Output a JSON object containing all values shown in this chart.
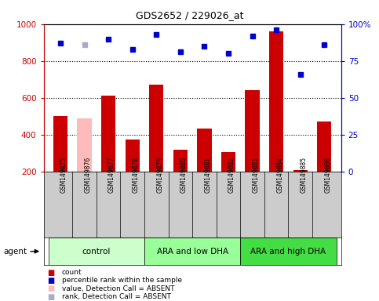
{
  "title": "GDS2652 / 229026_at",
  "samples": [
    "GSM149875",
    "GSM149876",
    "GSM149877",
    "GSM149878",
    "GSM149879",
    "GSM149880",
    "GSM149881",
    "GSM149882",
    "GSM149883",
    "GSM149884",
    "GSM149885",
    "GSM149886"
  ],
  "bar_values": [
    500,
    490,
    610,
    375,
    670,
    320,
    435,
    305,
    640,
    960,
    210,
    470
  ],
  "bar_colors": [
    "#cc0000",
    "#ffbbbb",
    "#cc0000",
    "#cc0000",
    "#cc0000",
    "#cc0000",
    "#cc0000",
    "#cc0000",
    "#cc0000",
    "#cc0000",
    "#cc0000",
    "#cc0000"
  ],
  "rank_values": [
    87,
    86,
    90,
    83,
    93,
    81,
    85,
    80,
    92,
    96,
    66,
    86
  ],
  "rank_absent": [
    false,
    true,
    false,
    false,
    false,
    false,
    false,
    false,
    false,
    false,
    false,
    false
  ],
  "ylim_left": [
    200,
    1000
  ],
  "ylim_right": [
    0,
    100
  ],
  "yticks_left": [
    200,
    400,
    600,
    800,
    1000
  ],
  "yticks_right": [
    0,
    25,
    50,
    75,
    100
  ],
  "ytick_labels_right": [
    "0",
    "25",
    "50",
    "75",
    "100%"
  ],
  "groups": [
    {
      "label": "control",
      "start": 0,
      "end": 3,
      "color": "#ccffcc"
    },
    {
      "label": "ARA and low DHA",
      "start": 4,
      "end": 7,
      "color": "#99ff99"
    },
    {
      "label": "ARA and high DHA",
      "start": 8,
      "end": 11,
      "color": "#44dd44"
    }
  ],
  "legend_items": [
    {
      "label": "count",
      "color": "#cc0000"
    },
    {
      "label": "percentile rank within the sample",
      "color": "#0000cc"
    },
    {
      "label": "value, Detection Call = ABSENT",
      "color": "#ffbbbb"
    },
    {
      "label": "rank, Detection Call = ABSENT",
      "color": "#aaaacc"
    }
  ],
  "agent_label": "agent",
  "left_axis_color": "#cc0000",
  "right_axis_color": "#0000cc",
  "grid_dotted_vals": [
    400,
    600,
    800
  ],
  "bar_bottom": 200,
  "label_bg_color": "#cccccc",
  "absent_bar_color": "#ffbbbb",
  "absent_rank_color": "#aaaacc",
  "normal_bar_color": "#cc0000",
  "normal_rank_color": "#0000cc"
}
